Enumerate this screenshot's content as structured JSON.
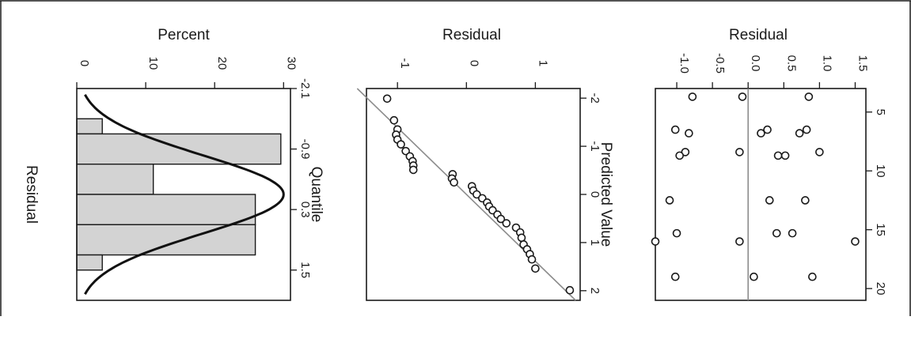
{
  "chart_data": [
    {
      "type": "bar",
      "panel": "histogram",
      "ylabel": "Percent",
      "xlabel": "Residual",
      "x_ticks": [
        "-2.1",
        "-0.9",
        "0.3",
        "1.5"
      ],
      "bins": [
        {
          "from": -2.1,
          "to": -1.5,
          "value": 0
        },
        {
          "from": -1.5,
          "to": -1.2,
          "value": 3.7
        },
        {
          "from": -1.2,
          "to": -0.6,
          "value": 29.6
        },
        {
          "from": -0.6,
          "to": 0.0,
          "value": 11.1
        },
        {
          "from": 0.0,
          "to": 0.6,
          "value": 25.9
        },
        {
          "from": 0.6,
          "to": 1.2,
          "value": 25.9
        },
        {
          "from": 1.2,
          "to": 1.5,
          "value": 3.7
        }
      ],
      "y_ticks": [
        0,
        10,
        20,
        30
      ],
      "ylim": [
        0,
        31
      ],
      "xlim": [
        -2.1,
        2.1
      ],
      "normal_curve": {
        "mean": 0.0,
        "sd": 0.78,
        "peak_percent": 30
      }
    },
    {
      "type": "scatter",
      "panel": "qq-plot",
      "ylabel": "Residual",
      "xlabel": "Quantile",
      "x_ticks": [
        -2,
        -1,
        0,
        1,
        2
      ],
      "y_ticks": [
        -1,
        0,
        1
      ],
      "xlim": [
        -2.2,
        2.2
      ],
      "ylim": [
        -1.45,
        1.65
      ],
      "reference_line": {
        "slope": 0.72,
        "intercept": 0.0
      },
      "points": [
        [
          -1.99,
          -1.15
        ],
        [
          -1.54,
          -1.05
        ],
        [
          -1.35,
          -1.0
        ],
        [
          -1.24,
          -1.02
        ],
        [
          -1.14,
          -1.0
        ],
        [
          -1.04,
          -0.95
        ],
        [
          -0.9,
          -0.88
        ],
        [
          -0.79,
          -0.82
        ],
        [
          -0.69,
          -0.78
        ],
        [
          -0.6,
          -0.77
        ],
        [
          -0.51,
          -0.77
        ],
        [
          -0.42,
          -0.2
        ],
        [
          -0.33,
          -0.21
        ],
        [
          -0.25,
          -0.18
        ],
        [
          -0.17,
          0.08
        ],
        [
          -0.08,
          0.1
        ],
        [
          0.0,
          0.15
        ],
        [
          0.08,
          0.23
        ],
        [
          0.17,
          0.3
        ],
        [
          0.25,
          0.33
        ],
        [
          0.33,
          0.38
        ],
        [
          0.42,
          0.45
        ],
        [
          0.51,
          0.5
        ],
        [
          0.6,
          0.58
        ],
        [
          0.69,
          0.72
        ],
        [
          0.79,
          0.78
        ],
        [
          0.9,
          0.8
        ],
        [
          1.04,
          0.83
        ],
        [
          1.14,
          0.88
        ],
        [
          1.24,
          0.92
        ],
        [
          1.35,
          0.95
        ],
        [
          1.54,
          1.0
        ],
        [
          1.99,
          1.5
        ]
      ]
    },
    {
      "type": "scatter",
      "panel": "residual-vs-predicted",
      "ylabel": "Residual",
      "xlabel": "Predicted Value",
      "x_ticks": [
        5,
        10,
        15,
        20
      ],
      "y_ticks": [
        -1.0,
        -0.5,
        0.0,
        0.5,
        1.0,
        1.5
      ],
      "y_tick_labels": [
        "-1.0",
        "-0.5",
        "0.0",
        "0.5",
        "1.0",
        "1.5"
      ],
      "xlim": [
        3,
        21
      ],
      "ylim": [
        -1.3,
        1.65
      ],
      "reference_line": {
        "y": 0
      },
      "points": [
        [
          3.7,
          -0.78
        ],
        [
          3.7,
          -0.08
        ],
        [
          3.7,
          0.85
        ],
        [
          6.5,
          -1.02
        ],
        [
          6.5,
          0.27
        ],
        [
          6.5,
          0.82
        ],
        [
          6.8,
          -0.83
        ],
        [
          6.8,
          0.18
        ],
        [
          6.8,
          0.72
        ],
        [
          8.4,
          -0.88
        ],
        [
          8.4,
          -0.12
        ],
        [
          8.4,
          1.0
        ],
        [
          8.7,
          -0.96
        ],
        [
          8.7,
          0.42
        ],
        [
          8.7,
          0.52
        ],
        [
          12.5,
          -1.1
        ],
        [
          12.5,
          0.3
        ],
        [
          12.5,
          0.8
        ],
        [
          15.3,
          -1.0
        ],
        [
          15.3,
          0.4
        ],
        [
          15.3,
          0.62
        ],
        [
          16.0,
          -1.3
        ],
        [
          16.0,
          -0.12
        ],
        [
          16.0,
          1.5
        ],
        [
          19.0,
          -1.02
        ],
        [
          19.0,
          0.08
        ],
        [
          19.0,
          0.9
        ]
      ]
    }
  ]
}
